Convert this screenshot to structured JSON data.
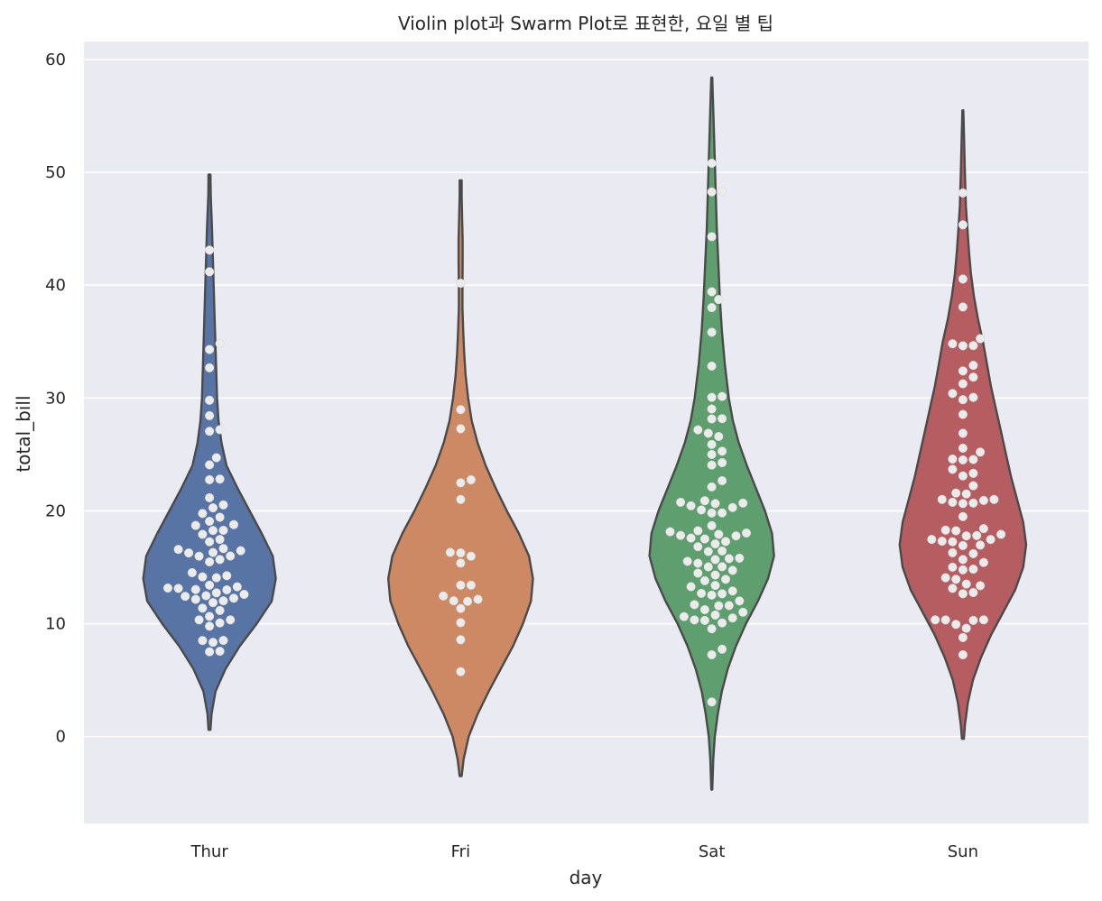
{
  "chart_data": {
    "type": "violin",
    "title": "Violin plot과 Swarm Plot로 표현한, 요일 별 팁",
    "xlabel": "day",
    "ylabel": "total_bill",
    "categories": [
      "Thur",
      "Fri",
      "Sat",
      "Sun"
    ],
    "ylim": [
      -7.7,
      61.6
    ],
    "yticks": [
      0,
      10,
      20,
      30,
      40,
      50,
      60
    ],
    "grid": true,
    "background": "#eaeaf2",
    "grid_color": "#ffffff",
    "outline_color": "#4a4a4a",
    "point_color": "#ebebeb",
    "series": [
      {
        "category": "Thur",
        "color": "#5874a5",
        "violin_range": [
          0.6,
          49.8
        ],
        "violin_profile": [
          [
            0.6,
            0.01
          ],
          [
            2,
            0.02
          ],
          [
            4,
            0.06
          ],
          [
            6,
            0.16
          ],
          [
            8,
            0.3
          ],
          [
            10,
            0.47
          ],
          [
            12,
            0.62
          ],
          [
            14,
            0.66
          ],
          [
            16,
            0.63
          ],
          [
            18,
            0.52
          ],
          [
            20,
            0.4
          ],
          [
            22,
            0.28
          ],
          [
            24,
            0.17
          ],
          [
            26,
            0.12
          ],
          [
            28,
            0.09
          ],
          [
            30,
            0.075
          ],
          [
            33,
            0.065
          ],
          [
            36,
            0.055
          ],
          [
            39,
            0.045
          ],
          [
            42,
            0.035
          ],
          [
            45,
            0.025
          ],
          [
            48,
            0.012
          ],
          [
            49.8,
            0.01
          ]
        ],
        "values": [
          7.51,
          7.56,
          8.35,
          8.51,
          8.52,
          9.78,
          10.07,
          10.34,
          10.34,
          10.65,
          11.17,
          11.38,
          11.87,
          12.03,
          12.16,
          12.26,
          12.43,
          12.48,
          12.6,
          12.74,
          13.0,
          13.03,
          13.13,
          13.16,
          13.27,
          13.42,
          14.07,
          14.15,
          14.26,
          14.52,
          15.48,
          15.69,
          15.98,
          16.0,
          16.27,
          16.31,
          16.47,
          16.58,
          16.66,
          17.26,
          17.47,
          17.92,
          18.26,
          18.28,
          18.71,
          18.78,
          19.08,
          19.44,
          19.77,
          20.27,
          20.53,
          21.16,
          22.76,
          22.82,
          24.08,
          24.71,
          27.05,
          27.2,
          28.44,
          29.8,
          32.68,
          34.3,
          34.83,
          41.19,
          43.11
        ]
      },
      {
        "category": "Fri",
        "color": "#cc8963",
        "violin_range": [
          -3.5,
          49.3
        ],
        "violin_profile": [
          [
            -3.5,
            0.01
          ],
          [
            -2,
            0.03
          ],
          [
            0,
            0.08
          ],
          [
            2,
            0.17
          ],
          [
            4,
            0.28
          ],
          [
            6,
            0.4
          ],
          [
            8,
            0.52
          ],
          [
            10,
            0.62
          ],
          [
            12,
            0.7
          ],
          [
            14,
            0.72
          ],
          [
            16,
            0.68
          ],
          [
            18,
            0.58
          ],
          [
            20,
            0.46
          ],
          [
            22,
            0.35
          ],
          [
            24,
            0.25
          ],
          [
            26,
            0.17
          ],
          [
            28,
            0.11
          ],
          [
            30,
            0.075
          ],
          [
            32,
            0.05
          ],
          [
            34,
            0.035
          ],
          [
            36,
            0.025
          ],
          [
            38,
            0.018
          ],
          [
            40,
            0.018
          ],
          [
            42,
            0.02
          ],
          [
            44,
            0.02
          ],
          [
            46,
            0.015
          ],
          [
            48,
            0.01
          ],
          [
            49.3,
            0.01
          ]
        ],
        "values": [
          5.75,
          8.58,
          10.09,
          11.35,
          11.98,
          12.03,
          12.16,
          12.46,
          13.42,
          13.42,
          15.38,
          15.98,
          16.27,
          16.32,
          21.01,
          22.49,
          22.75,
          27.28,
          28.97,
          40.17
        ]
      },
      {
        "category": "Sat",
        "color": "#5f9e6e",
        "violin_range": [
          -4.7,
          58.4
        ],
        "violin_profile": [
          [
            -4.7,
            0.005
          ],
          [
            -2,
            0.015
          ],
          [
            0,
            0.03
          ],
          [
            2,
            0.06
          ],
          [
            4,
            0.1
          ],
          [
            6,
            0.16
          ],
          [
            8,
            0.24
          ],
          [
            10,
            0.34
          ],
          [
            12,
            0.46
          ],
          [
            14,
            0.56
          ],
          [
            16,
            0.62
          ],
          [
            18,
            0.6
          ],
          [
            20,
            0.53
          ],
          [
            22,
            0.44
          ],
          [
            24,
            0.35
          ],
          [
            26,
            0.27
          ],
          [
            28,
            0.21
          ],
          [
            30,
            0.17
          ],
          [
            33,
            0.13
          ],
          [
            36,
            0.1
          ],
          [
            39,
            0.08
          ],
          [
            42,
            0.065
          ],
          [
            45,
            0.05
          ],
          [
            48,
            0.04
          ],
          [
            51,
            0.03
          ],
          [
            54,
            0.02
          ],
          [
            57,
            0.01
          ],
          [
            58.4,
            0.005
          ]
        ],
        "values": [
          3.07,
          7.25,
          7.74,
          9.55,
          10.07,
          10.29,
          10.33,
          10.51,
          10.63,
          10.77,
          11.02,
          11.24,
          11.59,
          11.61,
          11.69,
          12.02,
          12.54,
          12.66,
          12.69,
          12.9,
          13.28,
          13.39,
          13.81,
          13.94,
          14.31,
          14.48,
          14.73,
          15.04,
          15.06,
          15.36,
          15.53,
          15.69,
          15.77,
          15.81,
          16.4,
          16.45,
          16.82,
          17.07,
          17.29,
          17.51,
          17.59,
          17.78,
          17.82,
          17.92,
          18.04,
          18.15,
          18.24,
          18.69,
          19.81,
          19.82,
          20.08,
          20.29,
          20.45,
          20.65,
          20.69,
          20.76,
          20.9,
          22.12,
          22.67,
          24.06,
          24.27,
          25.0,
          25.29,
          25.89,
          26.59,
          26.88,
          27.18,
          28.15,
          28.17,
          29.03,
          30.06,
          30.14,
          32.83,
          35.83,
          38.01,
          38.73,
          39.42,
          44.3,
          48.27,
          48.33,
          50.81
        ]
      },
      {
        "category": "Sun",
        "color": "#b55d60",
        "violin_range": [
          -0.2,
          55.5
        ],
        "violin_profile": [
          [
            -0.2,
            0.01
          ],
          [
            1,
            0.02
          ],
          [
            3,
            0.05
          ],
          [
            5,
            0.1
          ],
          [
            7,
            0.18
          ],
          [
            9,
            0.28
          ],
          [
            11,
            0.4
          ],
          [
            13,
            0.52
          ],
          [
            15,
            0.6
          ],
          [
            17,
            0.63
          ],
          [
            19,
            0.6
          ],
          [
            21,
            0.54
          ],
          [
            23,
            0.48
          ],
          [
            25,
            0.43
          ],
          [
            27,
            0.38
          ],
          [
            29,
            0.33
          ],
          [
            31,
            0.28
          ],
          [
            33,
            0.24
          ],
          [
            35,
            0.2
          ],
          [
            37,
            0.15
          ],
          [
            39,
            0.11
          ],
          [
            41,
            0.08
          ],
          [
            43,
            0.06
          ],
          [
            45,
            0.045
          ],
          [
            47,
            0.03
          ],
          [
            50,
            0.02
          ],
          [
            53,
            0.012
          ],
          [
            55.5,
            0.005
          ]
        ],
        "values": [
          7.25,
          8.77,
          9.6,
          9.94,
          10.29,
          10.33,
          10.34,
          10.34,
          12.66,
          12.76,
          13.13,
          13.37,
          13.51,
          13.94,
          14.07,
          14.78,
          14.83,
          15.01,
          15.42,
          15.69,
          16.21,
          16.29,
          16.93,
          16.97,
          17.26,
          17.31,
          17.46,
          17.47,
          17.78,
          17.81,
          17.92,
          18.24,
          18.29,
          18.43,
          19.49,
          20.65,
          20.69,
          20.76,
          20.92,
          21.01,
          21.01,
          21.5,
          21.58,
          22.23,
          23.1,
          23.33,
          23.68,
          24.52,
          24.55,
          24.59,
          25.21,
          25.56,
          26.88,
          28.55,
          29.85,
          30.06,
          30.4,
          31.27,
          31.85,
          32.4,
          32.9,
          34.63,
          34.65,
          34.81,
          35.26,
          38.07,
          40.55,
          45.35,
          48.17
        ]
      }
    ]
  }
}
